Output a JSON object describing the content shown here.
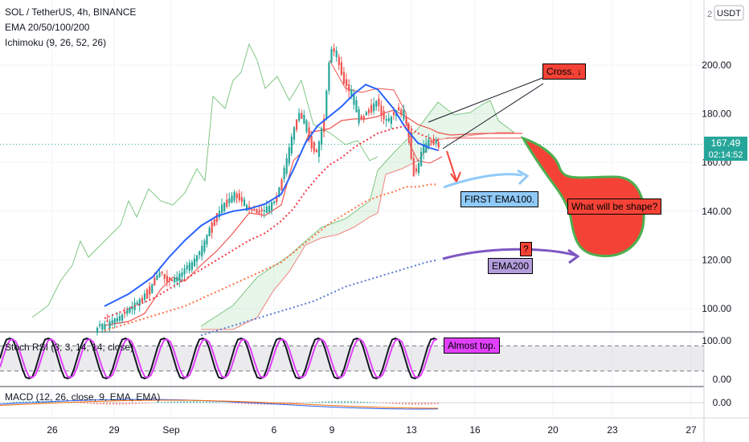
{
  "legend": {
    "symbol": "SOL / TetherUS, 4h, BINANCE",
    "ema": "EMA 20/50/100/200",
    "ichimoku": "Ichimoku (9, 26, 52, 26)",
    "stoch": "Stoch RSI (3, 3, 14, 14, close)",
    "macd": "MACD (12, 26, close, 9, EMA, EMA)"
  },
  "header": {
    "currency": "USDT",
    "scale_mark": "2"
  },
  "price_badge": {
    "price": "167.49",
    "countdown": "02:14:52"
  },
  "annotations": {
    "cross": "Cross. ↓",
    "first_ema100": "FIRST EMA100.",
    "shape": "What will be shape?",
    "q": "?",
    "ema200": "EMA200",
    "almost_top": "Almost top."
  },
  "colors": {
    "up": "#26a69a",
    "down": "#ef5350",
    "ema20": "#2962ff",
    "ema50": "#f23645",
    "ema100": "#ff7043",
    "ema200": "#5b7cd6",
    "lagging": "#81c784",
    "shape_fill": "#f44336",
    "shape_border": "#4caf50",
    "arrow_blue": "#90caf9",
    "arrow_purple": "#7e57c2",
    "note_red": "#f44336",
    "note_blue": "#90caf9",
    "note_purple": "#b39ddb",
    "note_pink": "#e040fb"
  },
  "chart_data": {
    "type": "candlestick",
    "symbol": "SOL/USDT",
    "timeframe": "4h",
    "exchange": "BINANCE",
    "price_axis": {
      "ticks": [
        "200.00",
        "180.00",
        "160.00",
        "140.00",
        "120.00",
        "100.00"
      ],
      "range": [
        89,
        230
      ]
    },
    "time_axis": {
      "ticks": [
        "26",
        "29",
        "Sep",
        "6",
        "9",
        "13",
        "16",
        "20",
        "23",
        "27"
      ]
    },
    "last_price": 167.49,
    "ema20_path": [
      [
        130,
        101
      ],
      [
        160,
        106
      ],
      [
        190,
        113
      ],
      [
        210,
        121
      ],
      [
        230,
        128
      ],
      [
        250,
        134
      ],
      [
        270,
        138
      ],
      [
        290,
        140
      ],
      [
        310,
        141
      ],
      [
        330,
        143
      ],
      [
        350,
        147
      ],
      [
        365,
        157
      ],
      [
        380,
        168
      ],
      [
        395,
        175
      ],
      [
        410,
        179
      ],
      [
        425,
        183
      ],
      [
        440,
        188
      ],
      [
        455,
        192
      ],
      [
        470,
        190
      ],
      [
        490,
        182
      ],
      [
        505,
        174
      ],
      [
        520,
        168
      ],
      [
        535,
        166
      ],
      [
        545,
        165
      ]
    ],
    "ema50_path": [
      [
        130,
        96
      ],
      [
        160,
        100
      ],
      [
        190,
        104
      ],
      [
        210,
        108
      ],
      [
        230,
        112
      ],
      [
        250,
        116
      ],
      [
        270,
        120
      ],
      [
        290,
        124
      ],
      [
        310,
        128
      ],
      [
        330,
        131
      ],
      [
        350,
        136
      ],
      [
        365,
        141
      ],
      [
        380,
        148
      ],
      [
        395,
        154
      ],
      [
        410,
        159
      ],
      [
        425,
        162
      ],
      [
        440,
        166
      ],
      [
        455,
        169
      ],
      [
        470,
        172
      ],
      [
        490,
        174
      ],
      [
        505,
        175
      ],
      [
        520,
        172
      ],
      [
        535,
        170
      ],
      [
        545,
        169
      ]
    ],
    "ema100_path": [
      [
        130,
        91
      ],
      [
        160,
        94
      ],
      [
        190,
        97
      ],
      [
        210,
        99
      ],
      [
        230,
        101
      ],
      [
        250,
        104
      ],
      [
        270,
        107
      ],
      [
        290,
        110
      ],
      [
        310,
        113
      ],
      [
        330,
        116
      ],
      [
        350,
        119
      ],
      [
        365,
        123
      ],
      [
        380,
        127
      ],
      [
        395,
        131
      ],
      [
        410,
        135
      ],
      [
        425,
        138
      ],
      [
        440,
        141
      ],
      [
        455,
        144
      ],
      [
        470,
        146
      ],
      [
        490,
        148
      ],
      [
        505,
        150
      ],
      [
        520,
        150
      ],
      [
        535,
        151
      ],
      [
        545,
        151
      ]
    ],
    "ema200_path": [
      [
        250,
        89
      ],
      [
        270,
        91
      ],
      [
        290,
        93
      ],
      [
        310,
        95
      ],
      [
        330,
        97
      ],
      [
        350,
        99
      ],
      [
        370,
        101
      ],
      [
        390,
        103
      ],
      [
        410,
        106
      ],
      [
        430,
        109
      ],
      [
        450,
        111
      ],
      [
        470,
        113
      ],
      [
        490,
        115
      ],
      [
        510,
        117
      ],
      [
        530,
        119
      ],
      [
        545,
        120
      ]
    ],
    "stoch_rsi": {
      "range": [
        0,
        100
      ],
      "bands": [
        20,
        80
      ],
      "ticks": [
        "100.00",
        "0.00"
      ]
    },
    "macd": {
      "ticks": [
        "0.00"
      ]
    }
  }
}
